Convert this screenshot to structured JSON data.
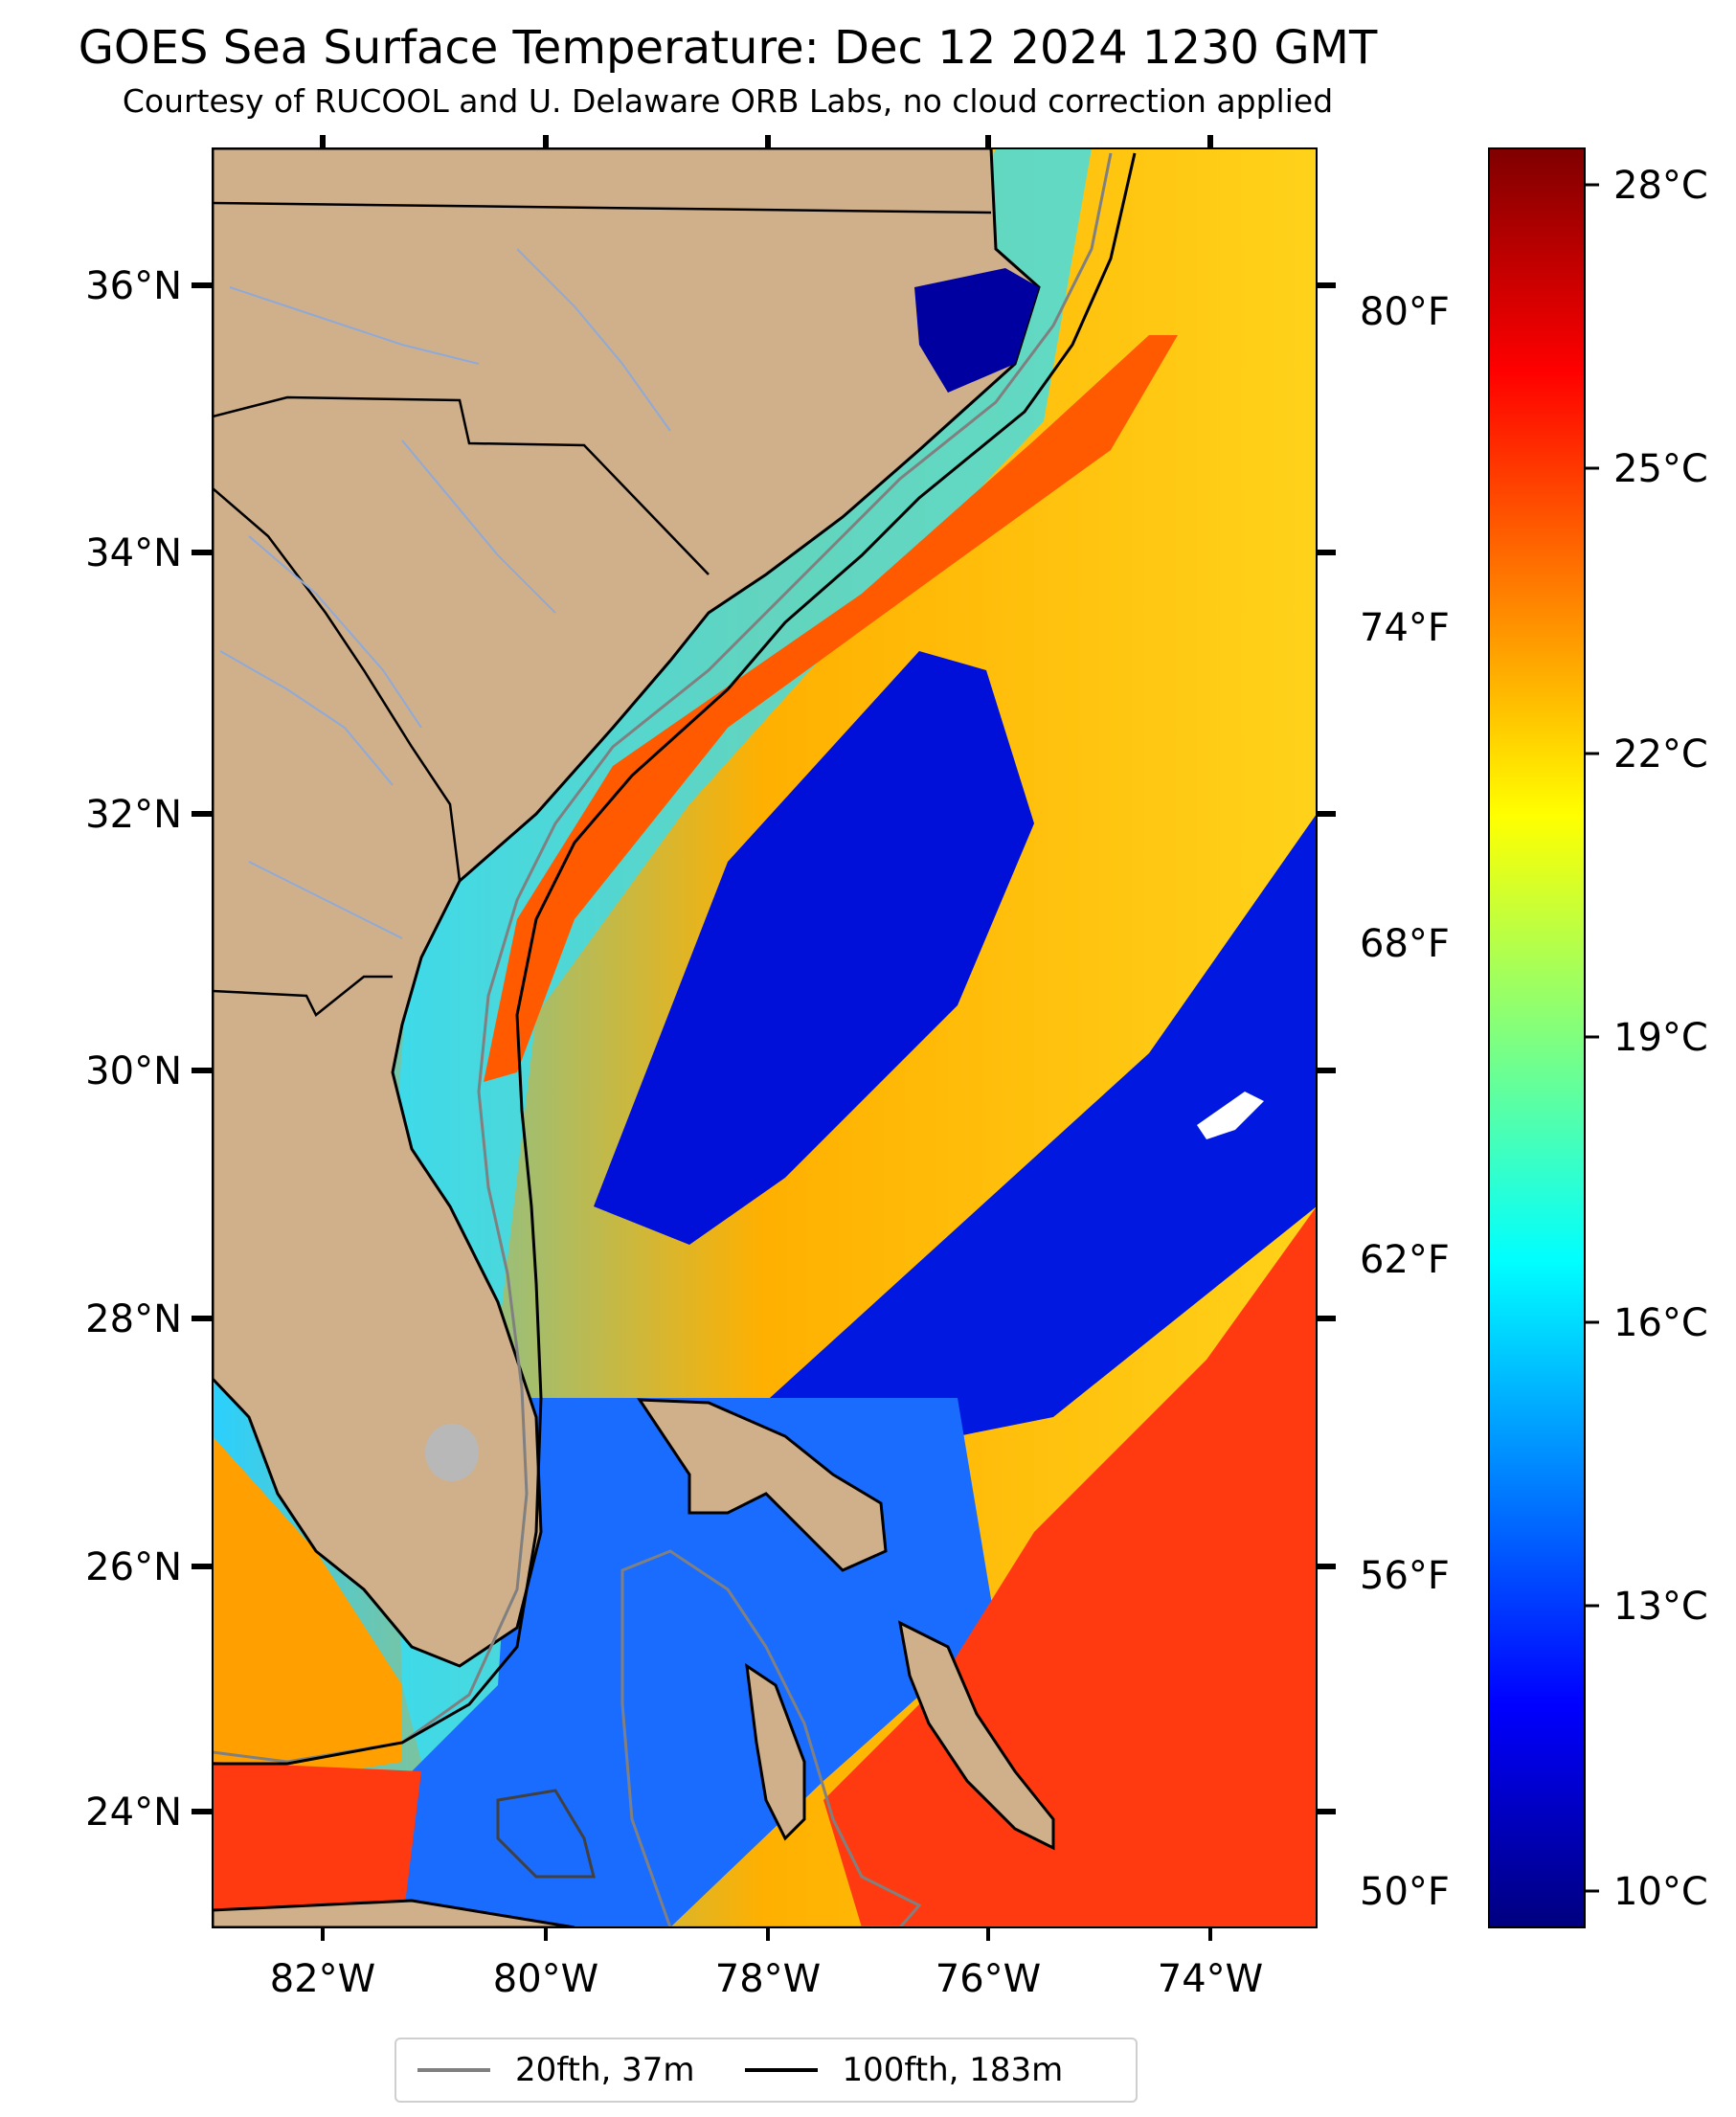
{
  "title": "GOES Sea Surface Temperature: Dec 12 2024 1230 GMT",
  "subtitle": "Courtesy of RUCOOL and U. Delaware ORB Labs, no cloud correction applied",
  "map": {
    "lon_labels": [
      "82°W",
      "80°W",
      "78°W",
      "76°W",
      "74°W"
    ],
    "lat_labels": [
      "36°N",
      "34°N",
      "32°N",
      "30°N",
      "28°N",
      "26°N",
      "24°N"
    ],
    "f_labels": [
      "80°F",
      "74°F",
      "68°F",
      "62°F",
      "56°F",
      "50°F"
    ],
    "colors": {
      "land": "#d0b08a",
      "state_line": "#000000",
      "river": "#8faad8"
    }
  },
  "colorbar": {
    "c_labels": [
      "28°C",
      "25°C",
      "22°C",
      "19°C",
      "16°C",
      "13°C",
      "10°C"
    ],
    "colormap": "jet"
  },
  "legend": {
    "items": [
      {
        "label": "20fth, 37m",
        "color": "#808080"
      },
      {
        "label": "100fth, 183m",
        "color": "#000000"
      }
    ]
  }
}
